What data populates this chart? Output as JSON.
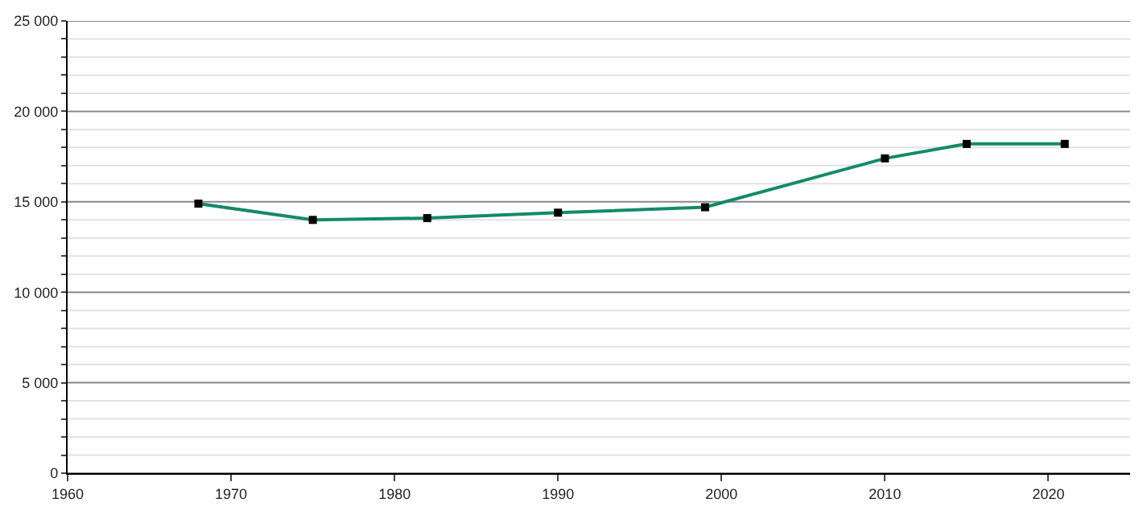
{
  "chart_data": {
    "type": "line",
    "x": [
      1968,
      1975,
      1982,
      1990,
      1999,
      2010,
      2015,
      2021
    ],
    "series": [
      {
        "color": "#138a6a",
        "values": [
          14900,
          14000,
          14100,
          14400,
          14700,
          17400,
          18200,
          18200
        ]
      }
    ],
    "xlim": [
      1960,
      2025
    ],
    "xticks": [
      1960,
      1970,
      1980,
      1990,
      2000,
      2010,
      2020
    ],
    "ylim": [
      0,
      25000
    ],
    "yticks": [
      {
        "value": 0,
        "label": "0"
      },
      {
        "value": 1000,
        "label": null
      },
      {
        "value": 2000,
        "label": null
      },
      {
        "value": 3000,
        "label": null
      },
      {
        "value": 4000,
        "label": null
      },
      {
        "value": 5000,
        "label": "5 000"
      },
      {
        "value": 6000,
        "label": null
      },
      {
        "value": 7000,
        "label": null
      },
      {
        "value": 8000,
        "label": null
      },
      {
        "value": 9000,
        "label": null
      },
      {
        "value": 10000,
        "label": "10 000"
      },
      {
        "value": 11000,
        "label": null
      },
      {
        "value": 12000,
        "label": null
      },
      {
        "value": 13000,
        "label": null
      },
      {
        "value": 14000,
        "label": null
      },
      {
        "value": 15000,
        "label": "15 000"
      },
      {
        "value": 16000,
        "label": null
      },
      {
        "value": 17000,
        "label": null
      },
      {
        "value": 18000,
        "label": null
      },
      {
        "value": 19000,
        "label": null
      },
      {
        "value": 20000,
        "label": "20 000"
      },
      {
        "value": 21000,
        "label": null
      },
      {
        "value": 22000,
        "label": null
      },
      {
        "value": 23000,
        "label": null
      },
      {
        "value": 24000,
        "label": null
      },
      {
        "value": 25000,
        "label": "25 000"
      }
    ],
    "grid": "y",
    "marker": "square",
    "line_style": "solid"
  }
}
